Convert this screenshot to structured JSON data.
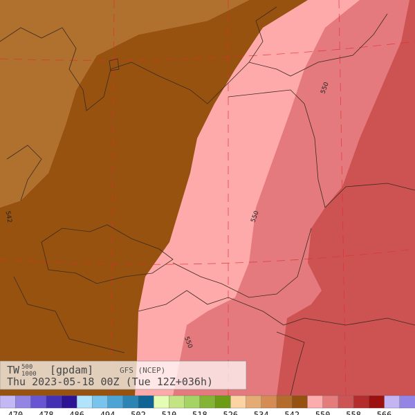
{
  "title": {
    "variable": "TW",
    "upper_level": "500",
    "lower_level": "1000",
    "unit": "[gpdam]",
    "model": "GFS (NCEP)",
    "valid": "Thu 2023-05-18 00Z (Tue 12Z+036h)"
  },
  "contour_labels": [
    "542",
    "550",
    "550",
    "550"
  ],
  "colorbar": {
    "colors": [
      "#c4b8f4",
      "#9484e4",
      "#6656d4",
      "#4430b4",
      "#2c1494",
      "#b0e4fc",
      "#78c4ec",
      "#4ca4d4",
      "#2c84b4",
      "#106494",
      "#e4fcb4",
      "#c4e484",
      "#a4d464",
      "#84b434",
      "#6c9c14",
      "#fcd4a4",
      "#e4ac74",
      "#d48c54",
      "#b46c2c",
      "#965010",
      "#fcacac",
      "#e47c7c",
      "#cc5454",
      "#b42c2c",
      "#9c1010",
      "#c4b4f4",
      "#9484e4"
    ],
    "labels": [
      470,
      478,
      486,
      494,
      502,
      510,
      518,
      526,
      534,
      542,
      550,
      558,
      566
    ]
  }
}
